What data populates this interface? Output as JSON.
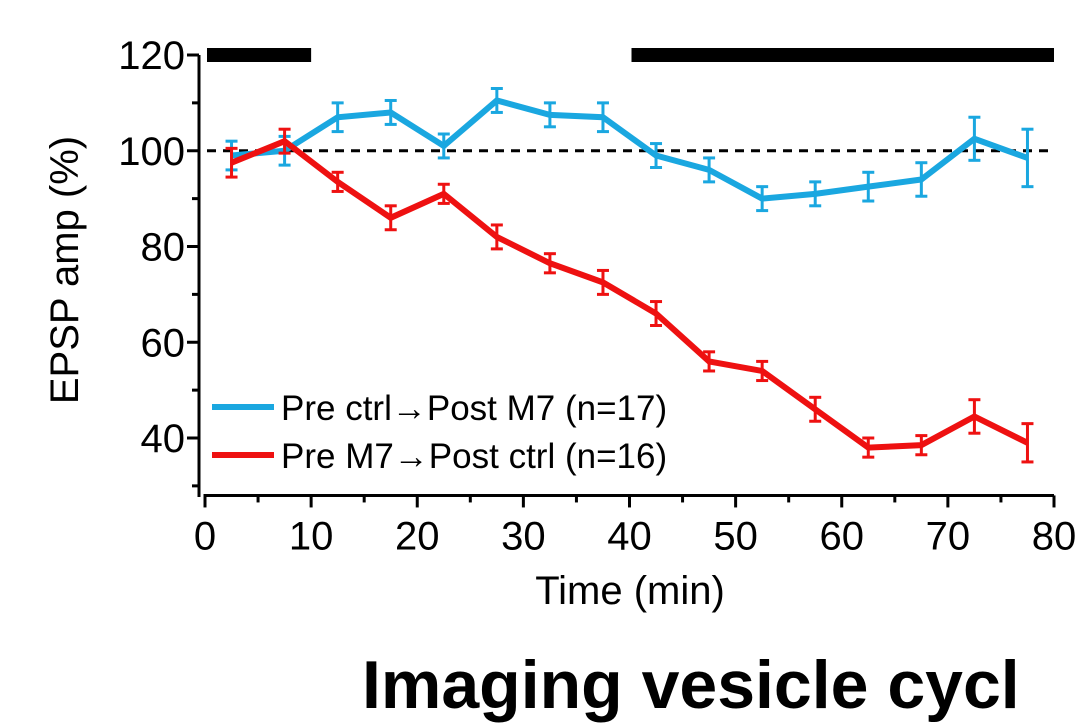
{
  "colors": {
    "background": "#ffffff",
    "axis": "#000000",
    "series_pre_ctrl_post_m7": "#1aa7e0",
    "series_pre_m7_post_ctrl": "#ee1111",
    "baseline": "#000000",
    "application_bar": "#000000"
  },
  "chart_data": {
    "type": "line",
    "title": "",
    "xlabel": "Time (min)",
    "ylabel": "EPSP amp (%)",
    "xlim": [
      0,
      80
    ],
    "ylim": [
      28,
      120
    ],
    "xticks": [
      0,
      10,
      20,
      30,
      40,
      50,
      60,
      70,
      80
    ],
    "xtick_labels": [
      "0",
      "10",
      "20",
      "30",
      "40",
      "50",
      "60",
      "70",
      "80"
    ],
    "yticks": [
      40,
      60,
      80,
      100,
      120
    ],
    "ytick_labels": [
      "40",
      "60",
      "80",
      "100",
      "120"
    ],
    "x": [
      2.5,
      7.5,
      12.5,
      17.5,
      22.5,
      27.5,
      32.5,
      37.5,
      42.5,
      47.5,
      52.5,
      57.5,
      62.5,
      67.5,
      72.5,
      77.5
    ],
    "baseline_y": 100,
    "baseline_style": "dashed",
    "application_bars": [
      {
        "name": "pre-drug-bar",
        "x_start": 0,
        "x_end": 10,
        "y": 120
      },
      {
        "name": "post-drug-bar",
        "x_start": 40,
        "x_end": 80,
        "y": 120
      }
    ],
    "legend_position": "bottom-left",
    "series": [
      {
        "name": "Pre ctrl→Post M7 (n=17)",
        "color": "#1aa7e0",
        "values": [
          99,
          100,
          107,
          108,
          101,
          110.5,
          107.5,
          107,
          99,
          96,
          90,
          91,
          92.5,
          94,
          102.5,
          98.5
        ],
        "errors": [
          3,
          3,
          3,
          2.5,
          2.5,
          2.5,
          2.5,
          3,
          2.5,
          2.5,
          2.5,
          2.5,
          3,
          3.5,
          4.5,
          6
        ]
      },
      {
        "name": "Pre M7→Post ctrl (n=16)",
        "color": "#ee1111",
        "values": [
          97.5,
          102,
          93.5,
          86,
          91,
          82,
          76.5,
          72.5,
          66,
          56,
          54,
          46,
          38,
          38.5,
          44.5,
          39
        ],
        "errors": [
          3,
          2.5,
          2,
          2.5,
          2,
          2.5,
          2,
          2.5,
          2.5,
          2,
          2,
          2.5,
          2,
          2,
          3.5,
          4
        ]
      }
    ]
  },
  "bottom_heading": "Imaging vesicle cycl"
}
